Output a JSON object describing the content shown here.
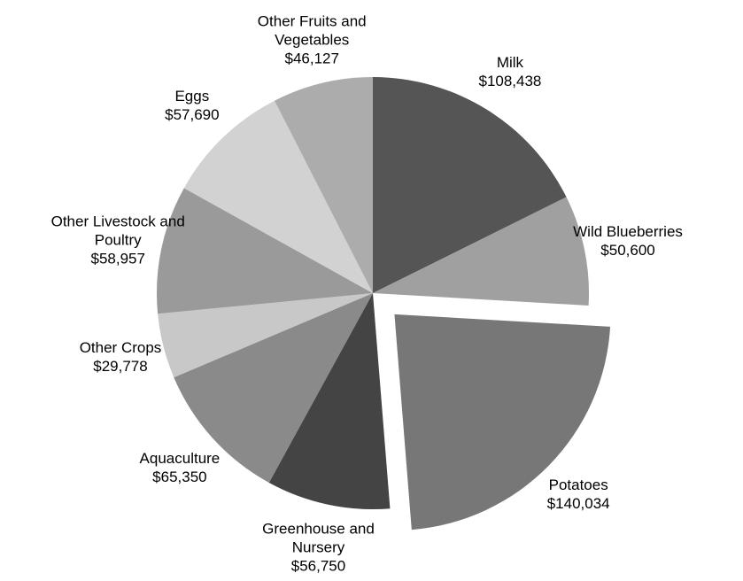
{
  "chart_data": {
    "type": "pie",
    "categories": [
      "Milk",
      "Wild Blueberries",
      "Potatoes",
      "Greenhouse and Nursery",
      "Aquaculture",
      "Other Crops",
      "Other Livestock and Poultry",
      "Eggs",
      "Other Fruits and Vegetables"
    ],
    "values": [
      108438,
      50600,
      140034,
      56750,
      65350,
      29778,
      58957,
      57690,
      46127
    ],
    "value_labels": [
      "$108,438",
      "$50,600",
      "$140,034",
      "$56,750",
      "$65,350",
      "$29,778",
      "$58,957",
      "$57,690",
      "$46,127"
    ],
    "colors": [
      "#555555",
      "#a0a0a0",
      "#777777",
      "#444444",
      "#8a8a8a",
      "#c8c8c8",
      "#9a9a9a",
      "#d2d2d2",
      "#acacac"
    ],
    "explode": [
      0,
      0,
      0.14,
      0,
      0,
      0,
      0,
      0,
      0
    ]
  }
}
